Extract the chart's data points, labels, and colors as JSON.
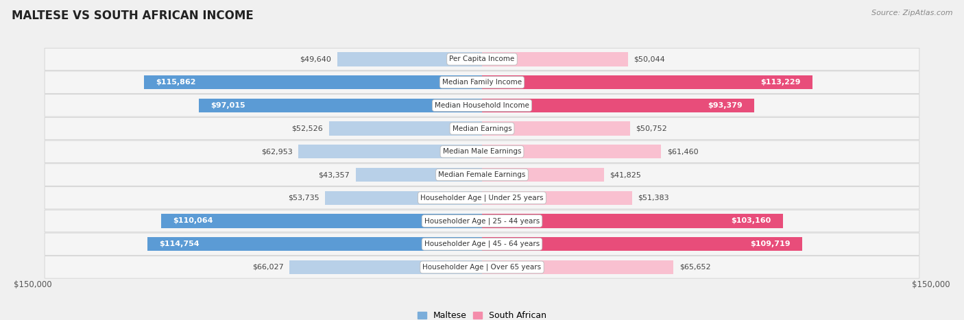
{
  "title": "MALTESE VS SOUTH AFRICAN INCOME",
  "source": "Source: ZipAtlas.com",
  "categories": [
    "Per Capita Income",
    "Median Family Income",
    "Median Household Income",
    "Median Earnings",
    "Median Male Earnings",
    "Median Female Earnings",
    "Householder Age | Under 25 years",
    "Householder Age | 25 - 44 years",
    "Householder Age | 45 - 64 years",
    "Householder Age | Over 65 years"
  ],
  "maltese_values": [
    49640,
    115862,
    97015,
    52526,
    62953,
    43357,
    53735,
    110064,
    114754,
    66027
  ],
  "south_african_values": [
    50044,
    113229,
    93379,
    50752,
    61460,
    41825,
    51383,
    103160,
    109719,
    65652
  ],
  "maltese_labels": [
    "$49,640",
    "$115,862",
    "$97,015",
    "$52,526",
    "$62,953",
    "$43,357",
    "$53,735",
    "$110,064",
    "$114,754",
    "$66,027"
  ],
  "south_african_labels": [
    "$50,044",
    "$113,229",
    "$93,379",
    "$50,752",
    "$61,460",
    "$41,825",
    "$51,383",
    "$103,160",
    "$109,719",
    "$65,652"
  ],
  "blue_light": "#b8d0e8",
  "blue_dark": "#5b9bd5",
  "pink_light": "#f9c0d0",
  "pink_dark": "#e84d7a",
  "large_threshold": 75000,
  "max_value": 150000,
  "x_label_left": "$150,000",
  "x_label_right": "$150,000",
  "legend_maltese": "Maltese",
  "legend_south_african": "South African",
  "bg_color": "#f0f0f0",
  "row_bg": "#ffffff",
  "row_bg_alt": "#ebebeb"
}
